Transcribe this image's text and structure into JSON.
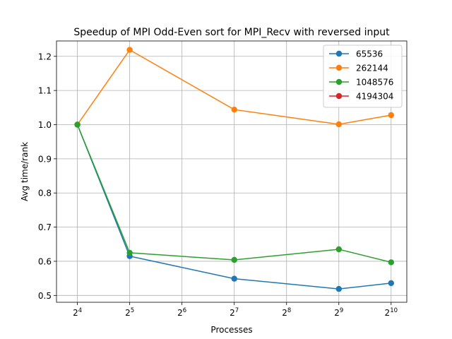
{
  "chart_data": {
    "type": "line",
    "title": "Speedup of MPI Odd-Even sort for MPI_Recv with reversed input",
    "xlabel": "Processes",
    "ylabel": "Avg time/rank",
    "x_scale": "log2",
    "xlim": [
      3.6,
      10.3
    ],
    "ylim": [
      0.48,
      1.245
    ],
    "grid": true,
    "legend_position": "top-right",
    "x_ticks": [
      {
        "exp": 4,
        "base": "2",
        "sup": "4"
      },
      {
        "exp": 5,
        "base": "2",
        "sup": "5"
      },
      {
        "exp": 6,
        "base": "2",
        "sup": "6"
      },
      {
        "exp": 7,
        "base": "2",
        "sup": "7"
      },
      {
        "exp": 8,
        "base": "2",
        "sup": "8"
      },
      {
        "exp": 9,
        "base": "2",
        "sup": "9"
      },
      {
        "exp": 10,
        "base": "2",
        "sup": "10"
      }
    ],
    "y_ticks": [
      {
        "value": 0.5,
        "label": "0.5"
      },
      {
        "value": 0.6,
        "label": "0.6"
      },
      {
        "value": 0.7,
        "label": "0.7"
      },
      {
        "value": 0.8,
        "label": "0.8"
      },
      {
        "value": 0.9,
        "label": "0.9"
      },
      {
        "value": 1.0,
        "label": "1.0"
      },
      {
        "value": 1.1,
        "label": "1.1"
      },
      {
        "value": 1.2,
        "label": "1.2"
      }
    ],
    "x": [
      16,
      32,
      128,
      512,
      1024
    ],
    "series": [
      {
        "name": "65536",
        "color": "#1f77b4",
        "values": [
          1.0,
          0.615,
          0.549,
          0.519,
          0.536
        ]
      },
      {
        "name": "262144",
        "color": "#ff7f0e",
        "values": [
          1.0,
          1.219,
          1.044,
          1.001,
          1.028
        ]
      },
      {
        "name": "1048576",
        "color": "#2ca02c",
        "values": [
          1.0,
          0.625,
          0.604,
          0.635,
          0.597
        ]
      },
      {
        "name": "4194304",
        "color": "#d62728",
        "values": [
          null,
          null,
          null,
          null,
          null
        ]
      }
    ]
  }
}
